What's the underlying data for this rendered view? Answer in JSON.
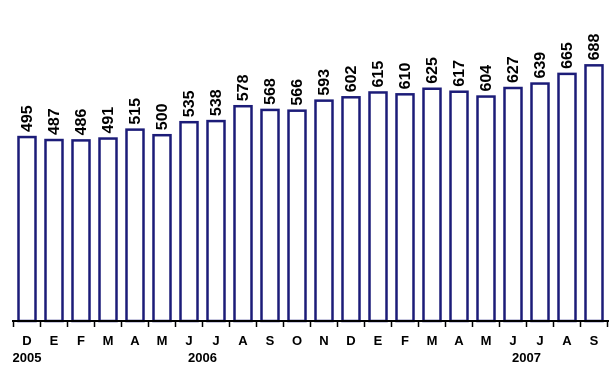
{
  "chart_data": {
    "type": "bar",
    "categories": [
      "D",
      "E",
      "F",
      "M",
      "A",
      "M",
      "J",
      "J",
      "A",
      "S",
      "O",
      "N",
      "D",
      "E",
      "F",
      "M",
      "A",
      "M",
      "J",
      "J",
      "A",
      "S"
    ],
    "values": [
      495,
      487,
      486,
      491,
      515,
      500,
      535,
      538,
      578,
      568,
      566,
      593,
      602,
      615,
      610,
      625,
      617,
      604,
      627,
      639,
      665,
      688
    ],
    "year_labels": [
      {
        "label": "2005",
        "index": 0
      },
      {
        "label": "2006",
        "index": 6.5
      },
      {
        "label": "2007",
        "index": 18.5
      }
    ],
    "title": "",
    "xlabel": "",
    "ylabel": "",
    "ylim": [
      0,
      700
    ],
    "grid": false,
    "colors": {
      "bar_stroke": "#1c1c78",
      "bar_fill": "#ffffff"
    }
  }
}
